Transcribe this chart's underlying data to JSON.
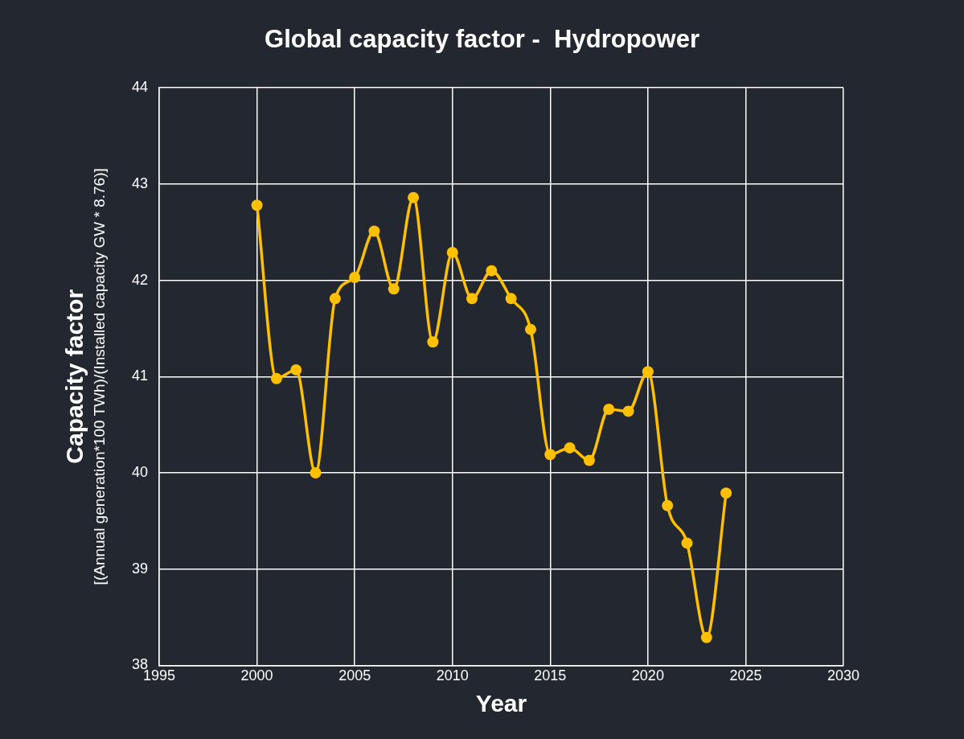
{
  "chart_data": {
    "type": "line",
    "title": "Global capacity factor -  Hydropower",
    "xlabel": "Year",
    "ylabel": "Capacity factor\n[(Annual generation*100 TWh)/(Installed capacity GW * 8.76)]",
    "x": [
      2000,
      2001,
      2002,
      2003,
      2004,
      2005,
      2006,
      2007,
      2008,
      2009,
      2010,
      2011,
      2012,
      2013,
      2014,
      2015,
      2016,
      2017,
      2018,
      2019,
      2020,
      2021,
      2022,
      2023,
      2024
    ],
    "series": [
      {
        "color": "#ffc000",
        "values": [
          42.78,
          40.98,
          41.07,
          40.0,
          41.81,
          42.03,
          42.51,
          41.91,
          42.86,
          41.36,
          42.29,
          41.81,
          42.1,
          41.81,
          41.49,
          40.19,
          40.26,
          40.13,
          40.66,
          40.64,
          41.05,
          39.66,
          39.27,
          38.29,
          39.79
        ]
      }
    ],
    "xlim": [
      1995,
      2030
    ],
    "xticks": [
      1995,
      2000,
      2005,
      2010,
      2015,
      2020,
      2025,
      2030
    ],
    "ylim": [
      38,
      44
    ],
    "yticks": [
      38,
      39,
      40,
      41,
      42,
      43,
      44
    ],
    "grid": true,
    "legend": false,
    "marker": "circle",
    "line_style": "solid"
  }
}
